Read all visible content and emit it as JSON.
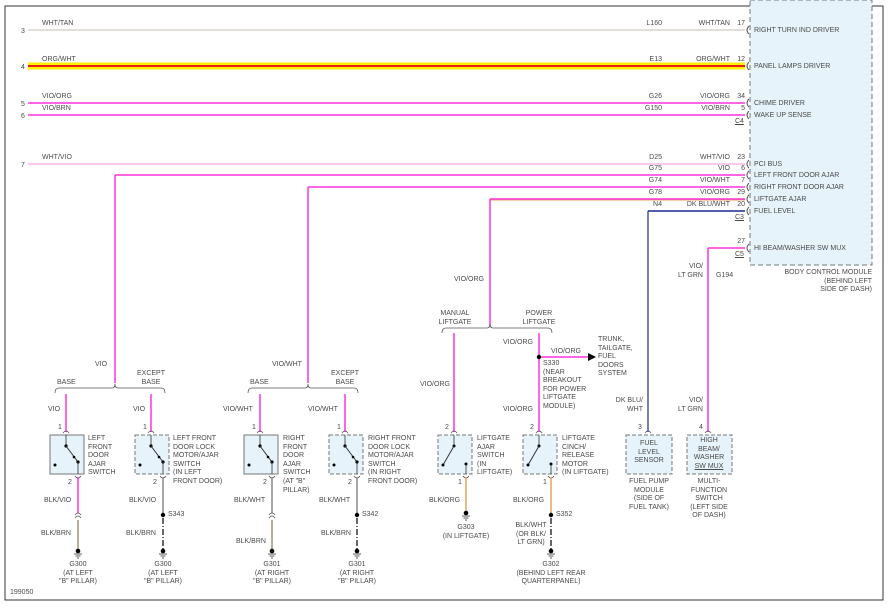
{
  "diagram_id": "199050",
  "bcm": {
    "title": "BODY CONTROL MODULE\n(BEHIND LEFT\nSIDE OF DASH)",
    "fill": "#e6f3fa",
    "connectors": {
      "c4": "C4",
      "c3": "C3",
      "c5": "C5"
    }
  },
  "wires": [
    {
      "row": "3",
      "color_left": "WHT/TAN",
      "circuit": "L160",
      "color_right": "WHT/TAN",
      "pin": "17",
      "function": "RIGHT TURN IND DRIVER",
      "hex": "#d8d4cc"
    },
    {
      "row": "4",
      "color_left": "ORG/WHT",
      "circuit": "E13",
      "color_right": "ORG/WHT",
      "pin": "12",
      "function": "PANEL LAMPS DRIVER",
      "hex": "#ffd800"
    },
    {
      "row": "5",
      "color_left": "VIO/ORG",
      "circuit": "G26",
      "color_right": "VIO/ORG",
      "pin": "34",
      "function": "CHIME DRIVER",
      "hex": "#ff33dd"
    },
    {
      "row": "6",
      "color_left": "VIO/BRN",
      "circuit": "G150",
      "color_right": "VIO/BRN",
      "pin": "5",
      "function": "WAKE UP SENSE",
      "hex": "#ff33dd"
    },
    {
      "row": "7",
      "color_left": "WHT/VIO",
      "circuit": "D25",
      "color_right": "WHT/VIO",
      "pin": "23",
      "function": "PCI BUS",
      "hex": "#ffc8f0"
    },
    {
      "row": "",
      "color_left": "",
      "circuit": "G75",
      "color_right": "VIO",
      "pin": "6",
      "function": "LEFT FRONT DOOR AJAR",
      "hex": "#ff33dd"
    },
    {
      "row": "",
      "color_left": "",
      "circuit": "G74",
      "color_right": "VIO/WHT",
      "pin": "7",
      "function": "RIGHT FRONT DOOR AJAR",
      "hex": "#ff33dd"
    },
    {
      "row": "",
      "color_left": "",
      "circuit": "G78",
      "color_right": "VIO/ORG",
      "pin": "29",
      "function": "LIFTGATE AJAR",
      "hex": "#ff33dd"
    },
    {
      "row": "",
      "color_left": "",
      "circuit": "N4",
      "color_right": "DK BLU/WHT",
      "pin": "20",
      "function": "FUEL LEVEL",
      "hex": "#1a2a8c"
    },
    {
      "row": "",
      "color_left": "",
      "circuit": "",
      "color_right": "",
      "pin": "27",
      "function": "HI BEAM/WASHER SW MUX",
      "hex": "#ff33dd"
    }
  ],
  "left_door": {
    "feed": "VIO",
    "base": "BASE",
    "except_base": "EXCEPT\nBASE",
    "sw1": {
      "wire_in": "VIO",
      "pin_in": "1",
      "pin_out": "2",
      "name": "LEFT\nFRONT\nDOOR\nAJAR\nSWITCH",
      "wire_out": "BLK/VIO",
      "wire_gnd": "BLK/BRN",
      "ground": "G300\n(AT LEFT\n\"B\" PILLAR)"
    },
    "sw2": {
      "wire_in": "VIO",
      "pin_in": "1",
      "pin_out": "2",
      "name": "LEFT FRONT\nDOOR LOCK\nMOTOR/AJAR\nSWITCH\n(IN LEFT\nFRONT DOOR)",
      "wire_out": "BLK/VIO",
      "splice": "S343",
      "wire_gnd": "BLK/BRN",
      "ground": "G300\n(AT LEFT\n\"B\" PILLAR)"
    }
  },
  "right_door": {
    "feed": "VIO/WHT",
    "base": "BASE",
    "except_base": "EXCEPT\nBASE",
    "sw1": {
      "wire_in": "VIO/WHT",
      "pin_in": "1",
      "pin_out": "2",
      "name": "RIGHT\nFRONT\nDOOR\nAJAR\nSWITCH\n(AT \"B\"\nPILLAR)",
      "wire_out": "BLK/WHT",
      "wire_gnd": "BLK/BRN",
      "ground": "G301\n(AT RIGHT\n\"B\" PILLAR)"
    },
    "sw2": {
      "wire_in": "VIO/WHT",
      "pin_in": "1",
      "pin_out": "2",
      "name": "RIGHT FRONT\nDOOR LOCK\nMOTOR/AJAR\nSWITCH\n(IN RIGHT\nFRONT DOOR)",
      "wire_out": "BLK/WHT",
      "splice": "S342",
      "wire_gnd": "BLK/BRN",
      "ground": "G301\n(AT RIGHT\n\"B\" PILLAR)"
    }
  },
  "liftgate": {
    "feed": "VIO/ORG",
    "manual": "MANUAL\nLIFTGATE",
    "power": "POWER\nLIFTGATE",
    "sw1": {
      "wire_in": "VIO/ORG",
      "pin_in": "2",
      "pin_out": "1",
      "name": "LIFTGATE\nAJAR\nSWITCH\n(IN\nLIFTGATE)",
      "wire_out": "BLK/ORG",
      "ground": "G303\n(IN LIFTGATE)"
    },
    "sw2": {
      "wire_top": "VIO/ORG",
      "splice_top": "S330\n(NEAR\nBREAKOUT\nFOR POWER\nLIFTGATE\nMODULE)",
      "branch_wire": "VIO/ORG",
      "branch_dest": "TRUNK,\nTAILGATE,\nFUEL\nDOORS\nSYSTEM",
      "wire_in": "VIO/ORG",
      "pin_in": "2",
      "pin_out": "1",
      "name": "LIFTGATE\nCINCH/\nRELEASE\nMOTOR\n(IN LIFTGATE)",
      "wire_out": "BLK/ORG",
      "splice": "S352",
      "wire_gnd": "BLK/WHT\n(OR BLK/\nLT GRN)",
      "ground": "G302\n(BEHIND LEFT REAR\nQUARTERPANEL)"
    }
  },
  "fuel": {
    "wire": "DK BLU/\nWHT",
    "pin": "3",
    "box": "FUEL\nLEVEL\nSENSOR",
    "name": "FUEL PUMP\nMODULE\n(SIDE OF\nFUEL TANK)"
  },
  "hibeam": {
    "wire_top": "VIO/\nLT GRN",
    "splice": "G194",
    "wire": "VIO/\nLT GRN",
    "pin": "4",
    "box": "HIGH\nBEAM/\nWASHER",
    "box_u": "SW MUX",
    "name": "MULTI-\nFUNCTION\nSWITCH\n(LEFT SIDE\nOF DASH)"
  }
}
